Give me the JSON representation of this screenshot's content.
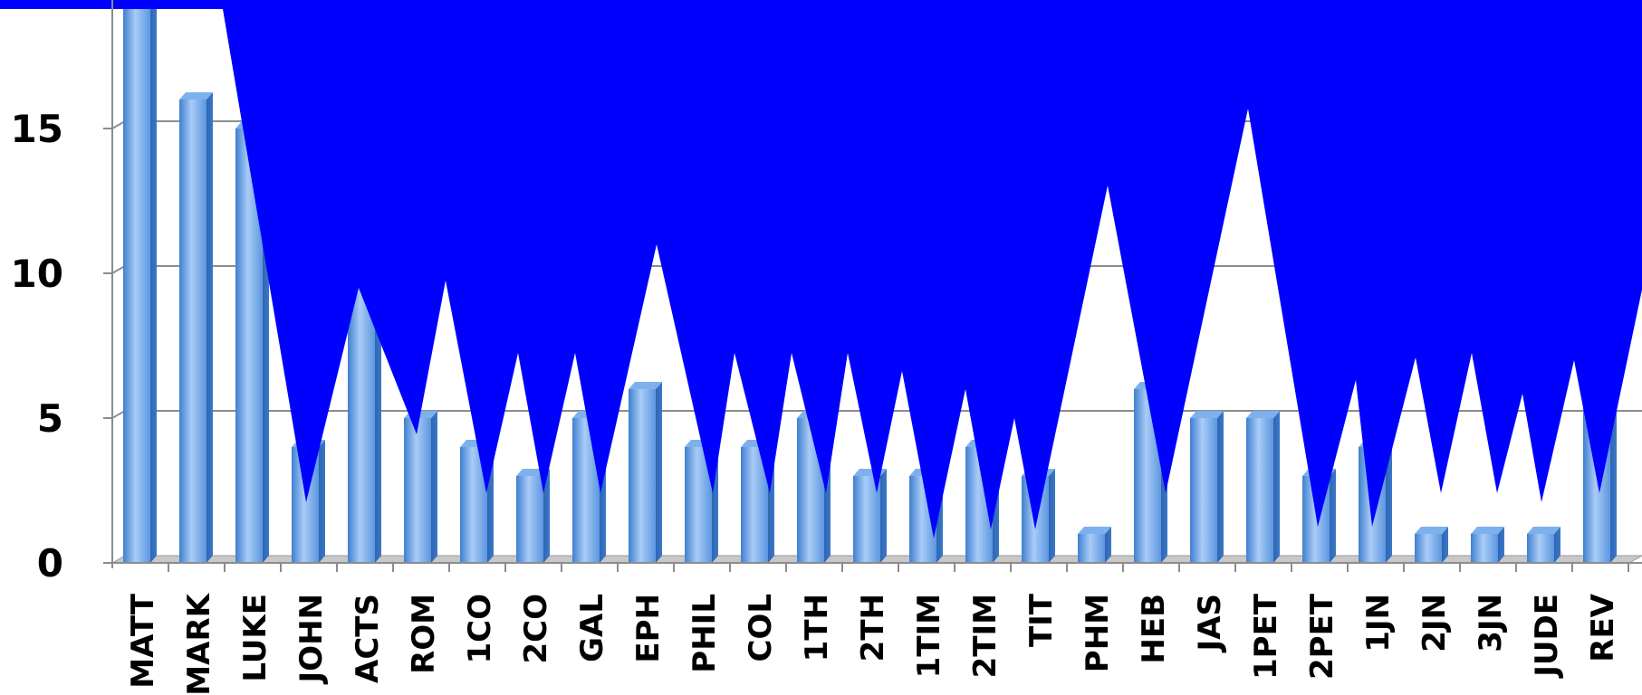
{
  "chart_data": {
    "type": "bar",
    "title": "",
    "xlabel": "",
    "ylabel": "",
    "categories": [
      "MATT",
      "MARK",
      "LUKE",
      "JOHN",
      "ACTS",
      "ROM",
      "1CO",
      "2CO",
      "GAL",
      "EPH",
      "PHIL",
      "COL",
      "1TH",
      "2TH",
      "1TIM",
      "2TIM",
      "TIT",
      "PHM",
      "HEB",
      "JAS",
      "1PET",
      "2PET",
      "1JN",
      "2JN",
      "3JN",
      "JUDE",
      "REV"
    ],
    "values": [
      20,
      16,
      15,
      4,
      10,
      5,
      4,
      3,
      5,
      6,
      4,
      4,
      5,
      3,
      3,
      4,
      3,
      1,
      6,
      5,
      5,
      3,
      4,
      1,
      1,
      1,
      6
    ],
    "ylim": [
      0,
      20
    ],
    "yticks": [
      0,
      5,
      10,
      15
    ],
    "grid": true,
    "legend": "none",
    "colors": {
      "bar_light": "#a9ccf7",
      "bar_mid": "#6aa6ec",
      "bar_dark": "#3a78c8",
      "grid": "#8c8c8c",
      "floor": "#c8c8c8",
      "overlay": "#0000ff"
    }
  }
}
